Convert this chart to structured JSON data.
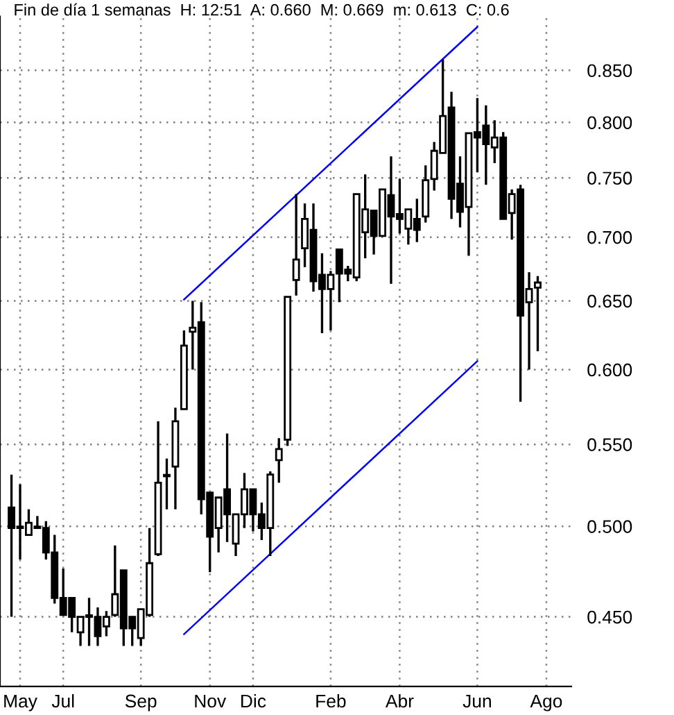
{
  "chart_data": {
    "type": "candlestick",
    "title": "Fin de día 1 semanas  H: 12:51  A: 0.660  M: 0.669  m: 0.613  C: 0.6",
    "color": "#000000",
    "categories": [
      null,
      "May",
      null,
      null,
      null,
      null,
      "Jul",
      null,
      null,
      null,
      null,
      null,
      null,
      null,
      null,
      "Sep",
      null,
      null,
      null,
      null,
      null,
      null,
      null,
      "Nov",
      null,
      null,
      null,
      null,
      "Dic",
      null,
      null,
      null,
      null,
      null,
      null,
      null,
      null,
      "Feb",
      null,
      null,
      null,
      null,
      null,
      null,
      null,
      "Abr",
      null,
      null,
      null,
      null,
      null,
      null,
      null,
      null,
      "Jun",
      null,
      null,
      null,
      null,
      null,
      null,
      null,
      "Ago"
    ],
    "ohlc": [
      [
        0.511,
        0.531,
        0.45,
        0.499
      ],
      [
        0.499,
        0.525,
        0.481,
        0.499
      ],
      [
        0.495,
        0.51,
        0.495,
        0.502
      ],
      [
        0.499,
        0.506,
        0.499,
        0.499
      ],
      [
        0.499,
        0.503,
        0.481,
        0.485
      ],
      [
        0.485,
        0.495,
        0.457,
        0.46
      ],
      [
        0.46,
        0.476,
        0.451,
        0.451
      ],
      [
        0.46,
        0.46,
        0.442,
        0.45
      ],
      [
        0.442,
        0.45,
        0.435,
        0.45
      ],
      [
        0.45,
        0.46,
        0.435,
        0.45
      ],
      [
        0.45,
        0.455,
        0.435,
        0.44
      ],
      [
        0.445,
        0.453,
        0.44,
        0.45
      ],
      [
        0.451,
        0.489,
        0.45,
        0.462
      ],
      [
        0.475,
        0.475,
        0.435,
        0.444
      ],
      [
        0.45,
        0.45,
        0.435,
        0.444
      ],
      [
        0.439,
        0.454,
        0.435,
        0.454
      ],
      [
        0.451,
        0.499,
        0.45,
        0.479
      ],
      [
        0.484,
        0.565,
        0.483,
        0.526
      ],
      [
        0.53,
        0.541,
        0.51,
        0.53
      ],
      [
        0.536,
        0.574,
        0.51,
        0.565
      ],
      [
        0.573,
        0.628,
        0.573,
        0.617
      ],
      [
        0.627,
        0.65,
        0.6,
        0.63
      ],
      [
        0.634,
        0.649,
        0.507,
        0.516
      ],
      [
        0.52,
        0.52,
        0.474,
        0.494
      ],
      [
        0.499,
        0.517,
        0.485,
        0.517
      ],
      [
        0.522,
        0.557,
        0.491,
        0.507
      ],
      [
        0.49,
        0.507,
        0.483,
        0.507
      ],
      [
        0.507,
        0.532,
        0.499,
        0.522
      ],
      [
        0.522,
        0.522,
        0.497,
        0.507
      ],
      [
        0.507,
        0.514,
        0.492,
        0.499
      ],
      [
        0.499,
        0.533,
        0.483,
        0.531
      ],
      [
        0.54,
        0.554,
        0.526,
        0.547
      ],
      [
        0.553,
        0.653,
        0.549,
        0.653
      ],
      [
        0.666,
        0.736,
        0.654,
        0.682
      ],
      [
        0.691,
        0.728,
        0.676,
        0.715
      ],
      [
        0.706,
        0.728,
        0.657,
        0.665
      ],
      [
        0.67,
        0.687,
        0.626,
        0.659
      ],
      [
        0.659,
        0.673,
        0.628,
        0.67
      ],
      [
        0.69,
        0.69,
        0.649,
        0.671
      ],
      [
        0.674,
        0.677,
        0.665,
        0.671
      ],
      [
        0.668,
        0.736,
        0.665,
        0.736
      ],
      [
        0.704,
        0.753,
        0.683,
        0.723
      ],
      [
        0.722,
        0.722,
        0.686,
        0.701
      ],
      [
        0.701,
        0.74,
        0.701,
        0.74
      ],
      [
        0.735,
        0.769,
        0.663,
        0.717
      ],
      [
        0.719,
        0.749,
        0.703,
        0.715
      ],
      [
        0.707,
        0.723,
        0.694,
        0.723
      ],
      [
        0.715,
        0.732,
        0.696,
        0.706
      ],
      [
        0.717,
        0.761,
        0.712,
        0.748
      ],
      [
        0.749,
        0.782,
        0.739,
        0.774
      ],
      [
        0.772,
        0.861,
        0.772,
        0.806
      ],
      [
        0.814,
        0.829,
        0.715,
        0.732
      ],
      [
        0.745,
        0.769,
        0.708,
        0.721
      ],
      [
        0.725,
        0.79,
        0.685,
        0.79
      ],
      [
        0.791,
        0.823,
        0.755,
        0.786
      ],
      [
        0.797,
        0.816,
        0.744,
        0.78
      ],
      [
        0.777,
        0.802,
        0.763,
        0.786
      ],
      [
        0.786,
        0.791,
        0.715,
        0.715
      ],
      [
        0.72,
        0.74,
        0.698,
        0.736
      ],
      [
        0.74,
        0.744,
        0.578,
        0.639
      ],
      [
        0.649,
        0.672,
        0.6,
        0.659
      ],
      [
        0.66,
        0.669,
        0.613,
        0.664
      ],
      null
    ],
    "series": [
      {
        "type": "line",
        "values": [
          null,
          null,
          null,
          null,
          null,
          null,
          null,
          null,
          null,
          null,
          null,
          null,
          null,
          null,
          null,
          null,
          null,
          null,
          null,
          null,
          0.651,
          null,
          null,
          null,
          null,
          null,
          null,
          null,
          null,
          null,
          null,
          null,
          null,
          null,
          null,
          null,
          null,
          null,
          null,
          null,
          null,
          null,
          null,
          null,
          null,
          null,
          null,
          null,
          null,
          null,
          null,
          null,
          null,
          null,
          0.894,
          null,
          null,
          null,
          null,
          null,
          null,
          null,
          null
        ],
        "color": "#0000ff"
      },
      {
        "type": "line",
        "values": [
          null,
          null,
          null,
          null,
          null,
          null,
          null,
          null,
          null,
          null,
          null,
          null,
          null,
          null,
          null,
          null,
          null,
          null,
          null,
          null,
          0.441,
          null,
          null,
          null,
          null,
          null,
          null,
          null,
          null,
          null,
          null,
          null,
          null,
          null,
          null,
          null,
          null,
          null,
          null,
          null,
          null,
          null,
          null,
          null,
          null,
          null,
          null,
          null,
          null,
          null,
          null,
          null,
          null,
          null,
          0.606,
          null,
          null,
          null,
          null,
          null,
          null,
          null,
          null
        ],
        "color": "#0000ff"
      }
    ],
    "ylim": [
      0.415,
      0.905
    ],
    "yticks": [
      {
        "value": 0.45,
        "label": "0.450"
      },
      {
        "value": 0.5,
        "label": "0.500"
      },
      {
        "value": 0.55,
        "label": "0.550"
      },
      {
        "value": 0.6,
        "label": "0.600"
      },
      {
        "value": 0.65,
        "label": "0.650"
      },
      {
        "value": 0.7,
        "label": "0.700"
      },
      {
        "value": 0.75,
        "label": "0.750"
      },
      {
        "value": 0.8,
        "label": "0.800"
      },
      {
        "value": 0.85,
        "label": "0.850"
      }
    ],
    "log": "y",
    "grid": true
  }
}
